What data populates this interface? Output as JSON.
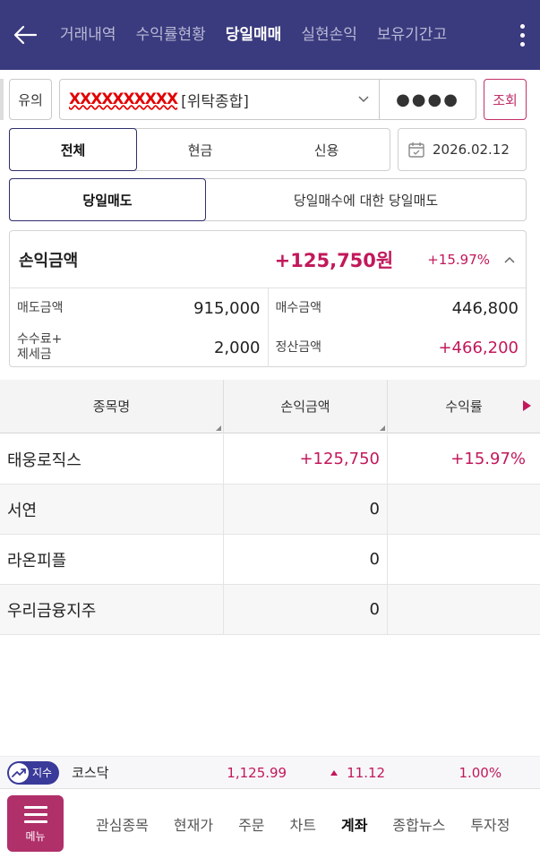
{
  "header": {
    "tabs": [
      {
        "label": "거래내역",
        "active": false
      },
      {
        "label": "수익률현황",
        "active": false
      },
      {
        "label": "당일매매",
        "active": true
      },
      {
        "label": "실현손익",
        "active": false
      },
      {
        "label": "보유기간고",
        "active": false
      }
    ]
  },
  "account": {
    "notice_label": "유의",
    "number_redacted": "XXXXXXXXXX",
    "type_label": "[위탁종합]",
    "password_mask": "●●●●",
    "query_label": "조회"
  },
  "filters": {
    "segments": [
      "전체",
      "현금",
      "신용"
    ],
    "selected_segment": "전체",
    "date": "2026.02.12",
    "sub_segments": [
      "당일매도",
      "당일매수에 대한 당일매도"
    ],
    "selected_sub": "당일매도"
  },
  "summary": {
    "pl_label": "손익금액",
    "pl_amount": "+125,750원",
    "pl_rate": "+15.97%",
    "sell_label": "매도금액",
    "sell_value": "915,000",
    "buy_label": "매수금액",
    "buy_value": "446,800",
    "fee_label_1": "수수료+",
    "fee_label_2": "제세금",
    "fee_value": "2,000",
    "settle_label": "정산금액",
    "settle_value": "+466,200"
  },
  "table": {
    "headers": [
      "종목명",
      "손익금액",
      "수익률"
    ],
    "rows": [
      {
        "name": "태웅로직스",
        "pl": "+125,750",
        "rate": "+15.97%"
      },
      {
        "name": "서연",
        "pl": "0",
        "rate": ""
      },
      {
        "name": "라온피플",
        "pl": "0",
        "rate": ""
      },
      {
        "name": "우리금융지주",
        "pl": "0",
        "rate": ""
      }
    ]
  },
  "ticker": {
    "badge": "지수",
    "name": "코스닥",
    "value": "1,125.99",
    "change": "11.12",
    "percent": "1.00%"
  },
  "bottom_nav": {
    "menu_label": "메뉴",
    "items": [
      {
        "label": "관심종목",
        "active": false
      },
      {
        "label": "현재가",
        "active": false
      },
      {
        "label": "주문",
        "active": false
      },
      {
        "label": "차트",
        "active": false
      },
      {
        "label": "계좌",
        "active": true
      },
      {
        "label": "종합뉴스",
        "active": false
      },
      {
        "label": "투자정",
        "active": false
      }
    ]
  },
  "colors": {
    "header_bg": "#3a3a7e",
    "accent_pink": "#c2185b",
    "menu_bg": "#b0306a",
    "selected_border": "#2f2f6e"
  }
}
